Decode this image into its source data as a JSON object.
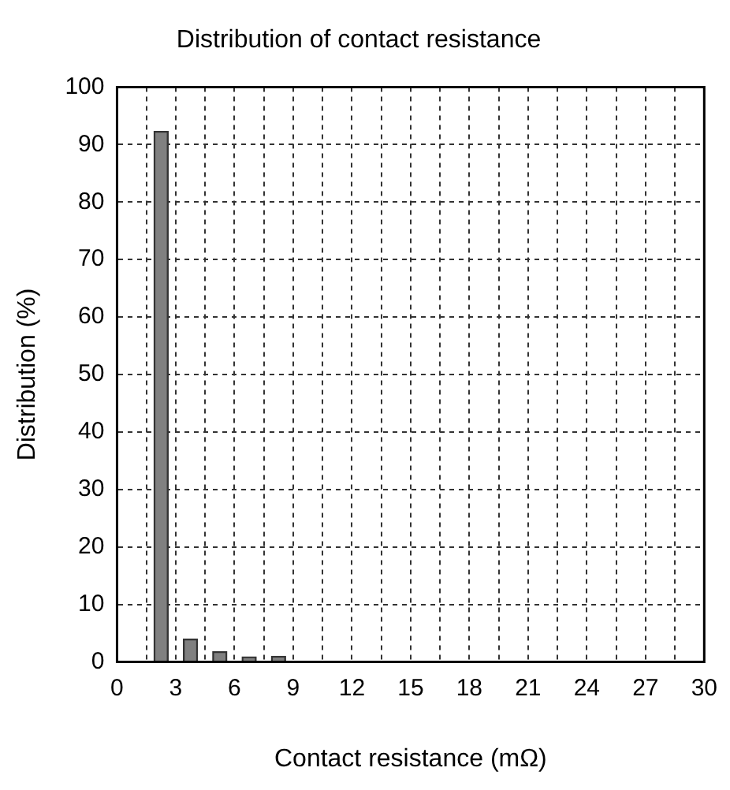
{
  "chart_data": {
    "type": "bar",
    "title": "Distribution of contact resistance",
    "xlabel": "Contact resistance (mΩ)",
    "ylabel": "Distribution (%)",
    "x": [
      2.25,
      3.75,
      5.25,
      6.75,
      8.25
    ],
    "values": [
      92.3,
      4,
      1.8,
      0.9,
      1.0
    ],
    "color": "#808080",
    "xlim": [
      0,
      30
    ],
    "xticks": [
      0,
      {
        "value": 1.5,
        "label": null
      },
      3,
      {
        "value": 4.5,
        "label": null
      },
      6,
      {
        "value": 7.5,
        "label": null
      },
      9,
      {
        "value": 10.5,
        "label": null
      },
      12,
      {
        "value": 13.5,
        "label": null
      },
      15,
      {
        "value": 16.5,
        "label": null
      },
      18,
      {
        "value": 19.5,
        "label": null
      },
      21,
      {
        "value": 22.5,
        "label": null
      },
      24,
      {
        "value": 25.5,
        "label": null
      },
      27,
      {
        "value": 28.5,
        "label": null
      },
      30
    ],
    "ylim": [
      0,
      100
    ],
    "yticks": [
      0,
      10,
      20,
      30,
      40,
      50,
      60,
      70,
      80,
      90,
      100
    ],
    "grid": true,
    "legend": false
  }
}
